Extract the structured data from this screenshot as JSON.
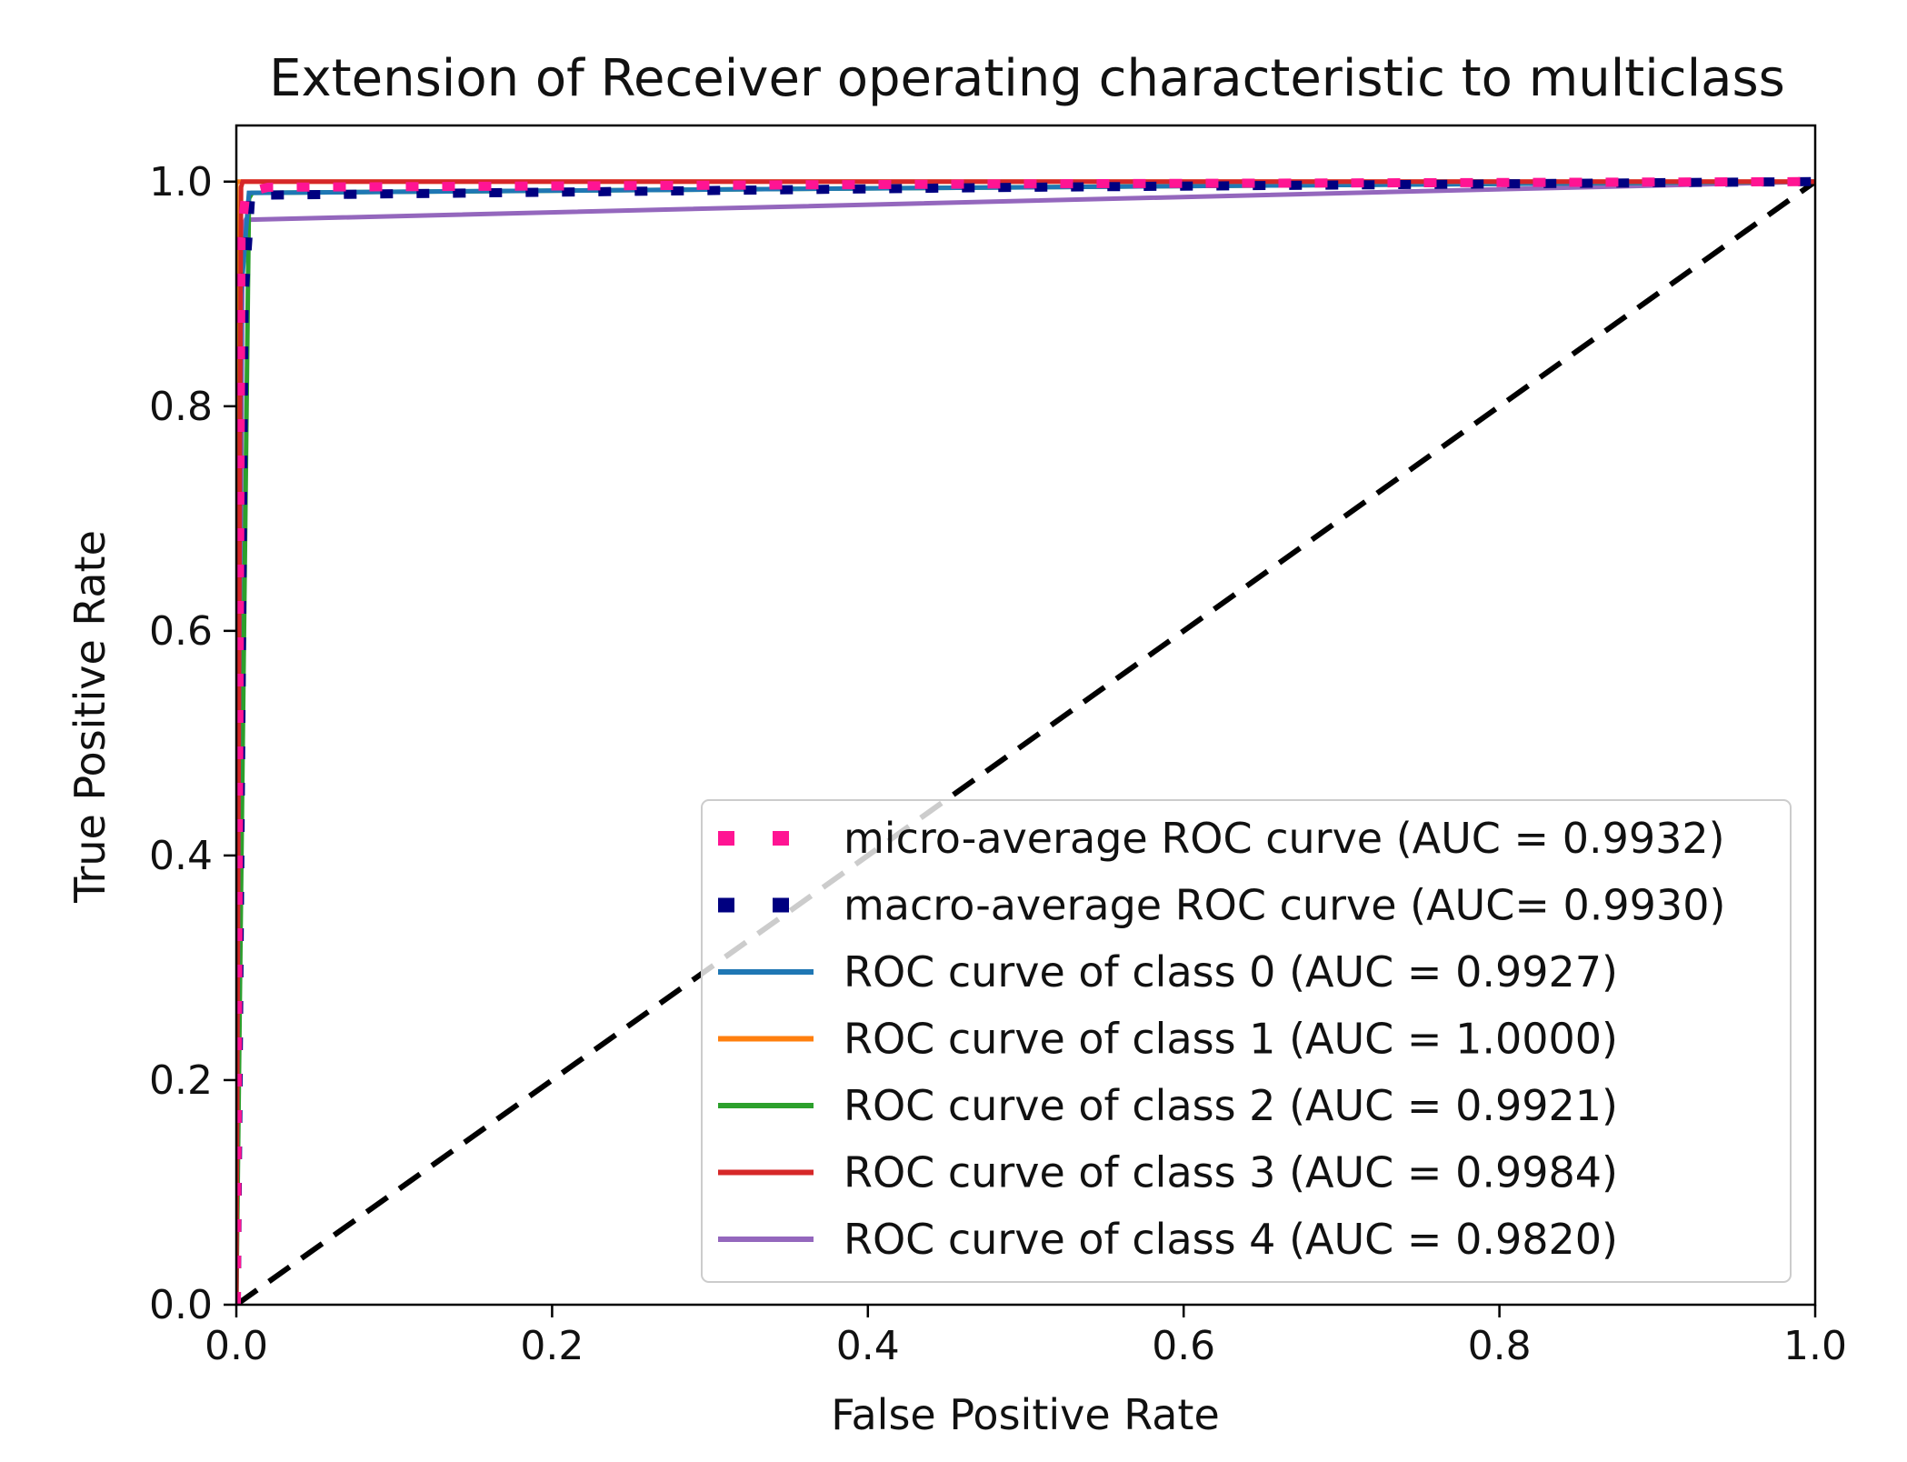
{
  "chart_data": {
    "type": "line",
    "title": "Extension of Receiver operating characteristic to multiclass",
    "xlabel": "False Positive Rate",
    "ylabel": "True Positive Rate",
    "xlim": [
      0.0,
      1.0
    ],
    "ylim": [
      0.0,
      1.05
    ],
    "grid": false,
    "legend_position": "lower-right",
    "x_ticks": [
      "0.0",
      "0.2",
      "0.4",
      "0.6",
      "0.8",
      "1.0"
    ],
    "y_ticks": [
      "0.0",
      "0.2",
      "0.4",
      "0.6",
      "0.8",
      "1.0"
    ],
    "x_tick_values": [
      0.0,
      0.2,
      0.4,
      0.6,
      0.8,
      1.0
    ],
    "y_tick_values": [
      0.0,
      0.2,
      0.4,
      0.6,
      0.8,
      1.0
    ],
    "series": [
      {
        "name": "micro-average ROC curve (AUC = 0.9932)",
        "color": "#ff1493",
        "style": "dotted",
        "x": [
          0.0,
          0.003,
          0.006,
          0.02,
          0.5,
          1.0
        ],
        "y": [
          0.0,
          0.95,
          0.99,
          0.995,
          0.998,
          1.0
        ]
      },
      {
        "name": "macro-average ROC curve (AUC= 0.9930)",
        "color": "#000080",
        "style": "dotted",
        "x": [
          0.0,
          0.005,
          0.009,
          0.02,
          0.5,
          1.0
        ],
        "y": [
          0.0,
          0.9,
          0.985,
          0.988,
          0.995,
          1.0
        ]
      },
      {
        "name": "ROC curve of class 0 (AUC = 0.9927)",
        "color": "#1f77b4",
        "style": "solid",
        "x": [
          0.0,
          0.003,
          0.008,
          0.5,
          1.0
        ],
        "y": [
          0.0,
          0.9,
          0.99,
          0.995,
          1.0
        ]
      },
      {
        "name": "ROC curve of class 1 (AUC = 1.0000)",
        "color": "#ff7f0e",
        "style": "solid",
        "x": [
          0.0,
          0.0,
          1.0
        ],
        "y": [
          0.0,
          1.0,
          1.0
        ]
      },
      {
        "name": "ROC curve of class 2 (AUC = 0.9921)",
        "color": "#2ca02c",
        "style": "solid",
        "x": [
          0.0,
          0.008,
          0.01,
          0.5,
          1.0
        ],
        "y": [
          0.0,
          0.985,
          0.99,
          0.995,
          1.0
        ]
      },
      {
        "name": "ROC curve of class 3 (AUC = 0.9984)",
        "color": "#d62728",
        "style": "solid",
        "x": [
          0.0,
          0.003,
          0.004,
          1.0
        ],
        "y": [
          0.0,
          0.995,
          1.0,
          1.0
        ]
      },
      {
        "name": "ROC curve of class 4 (AUC = 0.9820)",
        "color": "#9467bd",
        "style": "solid",
        "x": [
          0.0,
          0.004,
          0.006,
          1.0
        ],
        "y": [
          0.0,
          0.96,
          0.966,
          1.0
        ]
      }
    ],
    "reference_line": {
      "x": [
        0.0,
        1.0
      ],
      "y": [
        0.0,
        1.0
      ],
      "color": "#000000",
      "style": "dashed"
    }
  }
}
